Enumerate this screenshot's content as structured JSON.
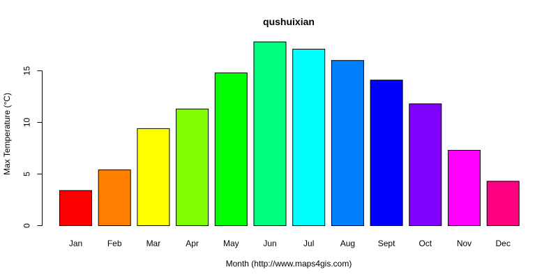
{
  "chart_data": {
    "type": "bar",
    "title": "qushuixian",
    "xlabel": "Month (http://www.maps4gis.com)",
    "ylabel": "Max Temperature (°C)",
    "categories": [
      "Jan",
      "Feb",
      "Mar",
      "Apr",
      "May",
      "Jun",
      "Jul",
      "Aug",
      "Sept",
      "Oct",
      "Nov",
      "Dec"
    ],
    "values": [
      3.4,
      5.4,
      9.4,
      11.3,
      14.8,
      17.8,
      17.1,
      16.0,
      14.1,
      11.8,
      7.3,
      4.3
    ],
    "colors": [
      "#FF0000",
      "#FF8000",
      "#FFFF00",
      "#80FF00",
      "#00FF00",
      "#00FF80",
      "#00FFFF",
      "#0080FF",
      "#0000FF",
      "#8000FF",
      "#FF00FF",
      "#FF0080"
    ],
    "yticks": [
      0,
      5,
      10,
      15
    ],
    "ylim": [
      0,
      18.5
    ],
    "grid": false,
    "legend": "none"
  }
}
